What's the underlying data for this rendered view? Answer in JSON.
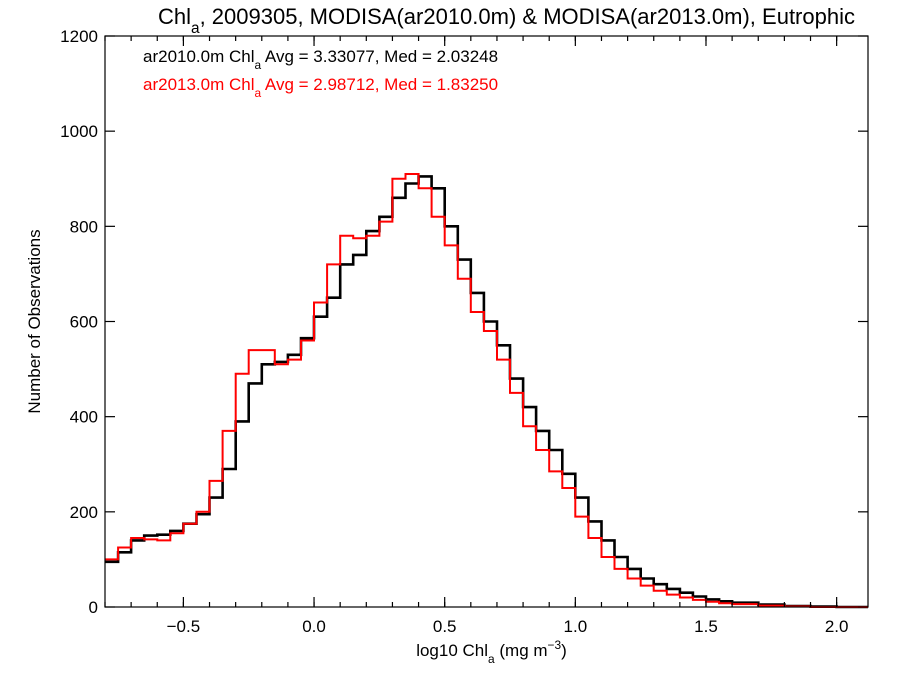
{
  "chart_data": {
    "type": "line",
    "subtype": "step-histogram",
    "title": {
      "prefix": "Chl",
      "sub": "a",
      "suffix": ", 2009305, MODISA(ar2010.0m) & MODISA(ar2013.0m), Eutrophic"
    },
    "xlabel": {
      "prefix": "log10 Chl",
      "sub": "a",
      "mid": " (mg m",
      "sup": "−3",
      "suffix": ")"
    },
    "ylabel": "Number of Observations",
    "xlim": [
      -0.8,
      2.12
    ],
    "ylim": [
      0,
      1200
    ],
    "x_ticks": [
      -0.5,
      0.0,
      0.5,
      1.0,
      1.5,
      2.0
    ],
    "x_tick_labels": [
      "−0.5",
      "0.0",
      "0.5",
      "1.0",
      "1.5",
      "2.0"
    ],
    "y_ticks": [
      0,
      200,
      400,
      600,
      800,
      1000,
      1200
    ],
    "y_tick_labels": [
      "0",
      "200",
      "400",
      "600",
      "800",
      "1000",
      "1200"
    ],
    "annotations": [
      {
        "prefix": "ar2010.0m Chl",
        "sub": "a",
        "suffix": " Avg = 3.33077, Med = 2.03248",
        "color": "#000000"
      },
      {
        "prefix": "ar2013.0m Chl",
        "sub": "a",
        "suffix": " Avg = 2.98712, Med = 1.83250",
        "color": "#ff0000"
      }
    ],
    "series": [
      {
        "color": "#000000",
        "line_width": 2.6,
        "points": [
          [
            -0.8,
            95
          ],
          [
            -0.75,
            115
          ],
          [
            -0.7,
            140
          ],
          [
            -0.65,
            150
          ],
          [
            -0.6,
            152
          ],
          [
            -0.55,
            160
          ],
          [
            -0.5,
            175
          ],
          [
            -0.45,
            195
          ],
          [
            -0.4,
            230
          ],
          [
            -0.35,
            290
          ],
          [
            -0.3,
            390
          ],
          [
            -0.25,
            470
          ],
          [
            -0.2,
            510
          ],
          [
            -0.15,
            515
          ],
          [
            -0.1,
            530
          ],
          [
            -0.05,
            565
          ],
          [
            0.0,
            610
          ],
          [
            0.05,
            650
          ],
          [
            0.1,
            720
          ],
          [
            0.15,
            740
          ],
          [
            0.2,
            790
          ],
          [
            0.25,
            820
          ],
          [
            0.3,
            860
          ],
          [
            0.35,
            890
          ],
          [
            0.4,
            905
          ],
          [
            0.45,
            880
          ],
          [
            0.5,
            800
          ],
          [
            0.55,
            730
          ],
          [
            0.6,
            660
          ],
          [
            0.65,
            600
          ],
          [
            0.7,
            550
          ],
          [
            0.75,
            480
          ],
          [
            0.8,
            420
          ],
          [
            0.85,
            370
          ],
          [
            0.9,
            330
          ],
          [
            0.95,
            280
          ],
          [
            1.0,
            230
          ],
          [
            1.05,
            180
          ],
          [
            1.1,
            140
          ],
          [
            1.15,
            105
          ],
          [
            1.2,
            80
          ],
          [
            1.25,
            60
          ],
          [
            1.3,
            48
          ],
          [
            1.35,
            38
          ],
          [
            1.4,
            30
          ],
          [
            1.45,
            22
          ],
          [
            1.5,
            16
          ],
          [
            1.55,
            12
          ],
          [
            1.6,
            9
          ],
          [
            1.7,
            5
          ],
          [
            1.8,
            2
          ],
          [
            1.9,
            1
          ],
          [
            2.0,
            0
          ],
          [
            2.1,
            0
          ]
        ]
      },
      {
        "color": "#ff0000",
        "line_width": 2.0,
        "points": [
          [
            -0.8,
            100
          ],
          [
            -0.75,
            125
          ],
          [
            -0.7,
            145
          ],
          [
            -0.65,
            142
          ],
          [
            -0.6,
            140
          ],
          [
            -0.55,
            155
          ],
          [
            -0.5,
            175
          ],
          [
            -0.45,
            200
          ],
          [
            -0.4,
            265
          ],
          [
            -0.35,
            370
          ],
          [
            -0.3,
            490
          ],
          [
            -0.25,
            540
          ],
          [
            -0.2,
            540
          ],
          [
            -0.15,
            510
          ],
          [
            -0.1,
            520
          ],
          [
            -0.05,
            560
          ],
          [
            0.0,
            640
          ],
          [
            0.05,
            720
          ],
          [
            0.1,
            780
          ],
          [
            0.15,
            775
          ],
          [
            0.2,
            780
          ],
          [
            0.25,
            810
          ],
          [
            0.3,
            900
          ],
          [
            0.35,
            910
          ],
          [
            0.4,
            880
          ],
          [
            0.45,
            820
          ],
          [
            0.5,
            760
          ],
          [
            0.55,
            690
          ],
          [
            0.6,
            620
          ],
          [
            0.65,
            580
          ],
          [
            0.7,
            520
          ],
          [
            0.75,
            450
          ],
          [
            0.8,
            380
          ],
          [
            0.85,
            330
          ],
          [
            0.9,
            285
          ],
          [
            0.95,
            250
          ],
          [
            1.0,
            190
          ],
          [
            1.05,
            145
          ],
          [
            1.1,
            105
          ],
          [
            1.15,
            80
          ],
          [
            1.2,
            60
          ],
          [
            1.25,
            45
          ],
          [
            1.3,
            34
          ],
          [
            1.35,
            26
          ],
          [
            1.4,
            20
          ],
          [
            1.45,
            15
          ],
          [
            1.5,
            11
          ],
          [
            1.55,
            8
          ],
          [
            1.6,
            6
          ],
          [
            1.7,
            3
          ],
          [
            1.8,
            1
          ],
          [
            1.9,
            0
          ],
          [
            2.0,
            0
          ],
          [
            2.1,
            0
          ]
        ]
      }
    ]
  }
}
